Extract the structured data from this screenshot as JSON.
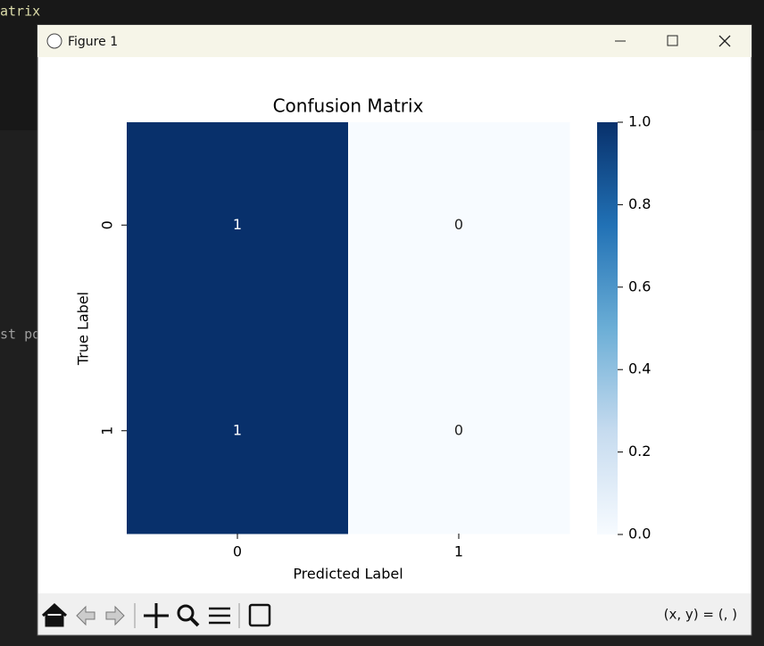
{
  "background": {
    "texts": [
      "atrix",
      "st po"
    ]
  },
  "window": {
    "title": "Figure 1",
    "status": "(x, y) = (, )"
  },
  "chart_data": {
    "type": "heatmap",
    "title": "Confusion Matrix",
    "xlabel": "Predicted Label",
    "ylabel": "True Label",
    "x_categories": [
      "0",
      "1"
    ],
    "y_categories": [
      "0",
      "1"
    ],
    "values": [
      [
        1,
        0
      ],
      [
        1,
        0
      ]
    ],
    "colormap": [
      "#f7fbff",
      "#c6dbef",
      "#6baed6",
      "#2171b5",
      "#08306b"
    ],
    "clim": [
      0,
      1
    ],
    "cticks": [
      {
        "value": 0,
        "label": "0.0"
      },
      0.2,
      0.4,
      0.6,
      0.8,
      {
        "value": 1,
        "label": "1.0"
      }
    ]
  }
}
